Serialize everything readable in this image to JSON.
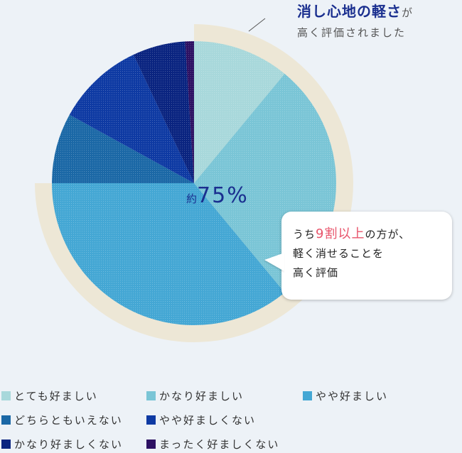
{
  "chart_data": {
    "type": "pie",
    "title": "消し心地の軽さ",
    "title_suffix": "が",
    "subtitle": "高く評価されました",
    "categories": [
      "とても好ましい",
      "かなり好ましい",
      "やや好ましい",
      "どちらともいえない",
      "やや好ましくない",
      "かなり好ましくない",
      "まったく好ましくない"
    ],
    "values": [
      11,
      28,
      36,
      8,
      10,
      6,
      1
    ],
    "highlight_total": 75,
    "highlight_categories": [
      "とても好ましい",
      "かなり好ましい",
      "やや好ましい"
    ],
    "legend_position": "bottom"
  },
  "center_label": {
    "prefix": "約",
    "value": "75%"
  },
  "callout": {
    "line1_pre": "うち",
    "line1_highlight": "9割以上",
    "line1_post": "の方が、",
    "line2": "軽く消せることを",
    "line3": "高く評価"
  },
  "colors": {
    "background": "#edf2f7",
    "ring": "#ede7d6",
    "series": [
      "#a8d8db",
      "#7ac5d6",
      "#44a7d4",
      "#1b68a6",
      "#0e3aa3",
      "#0a2480",
      "#2d1163"
    ],
    "accent": "#e8546b"
  }
}
